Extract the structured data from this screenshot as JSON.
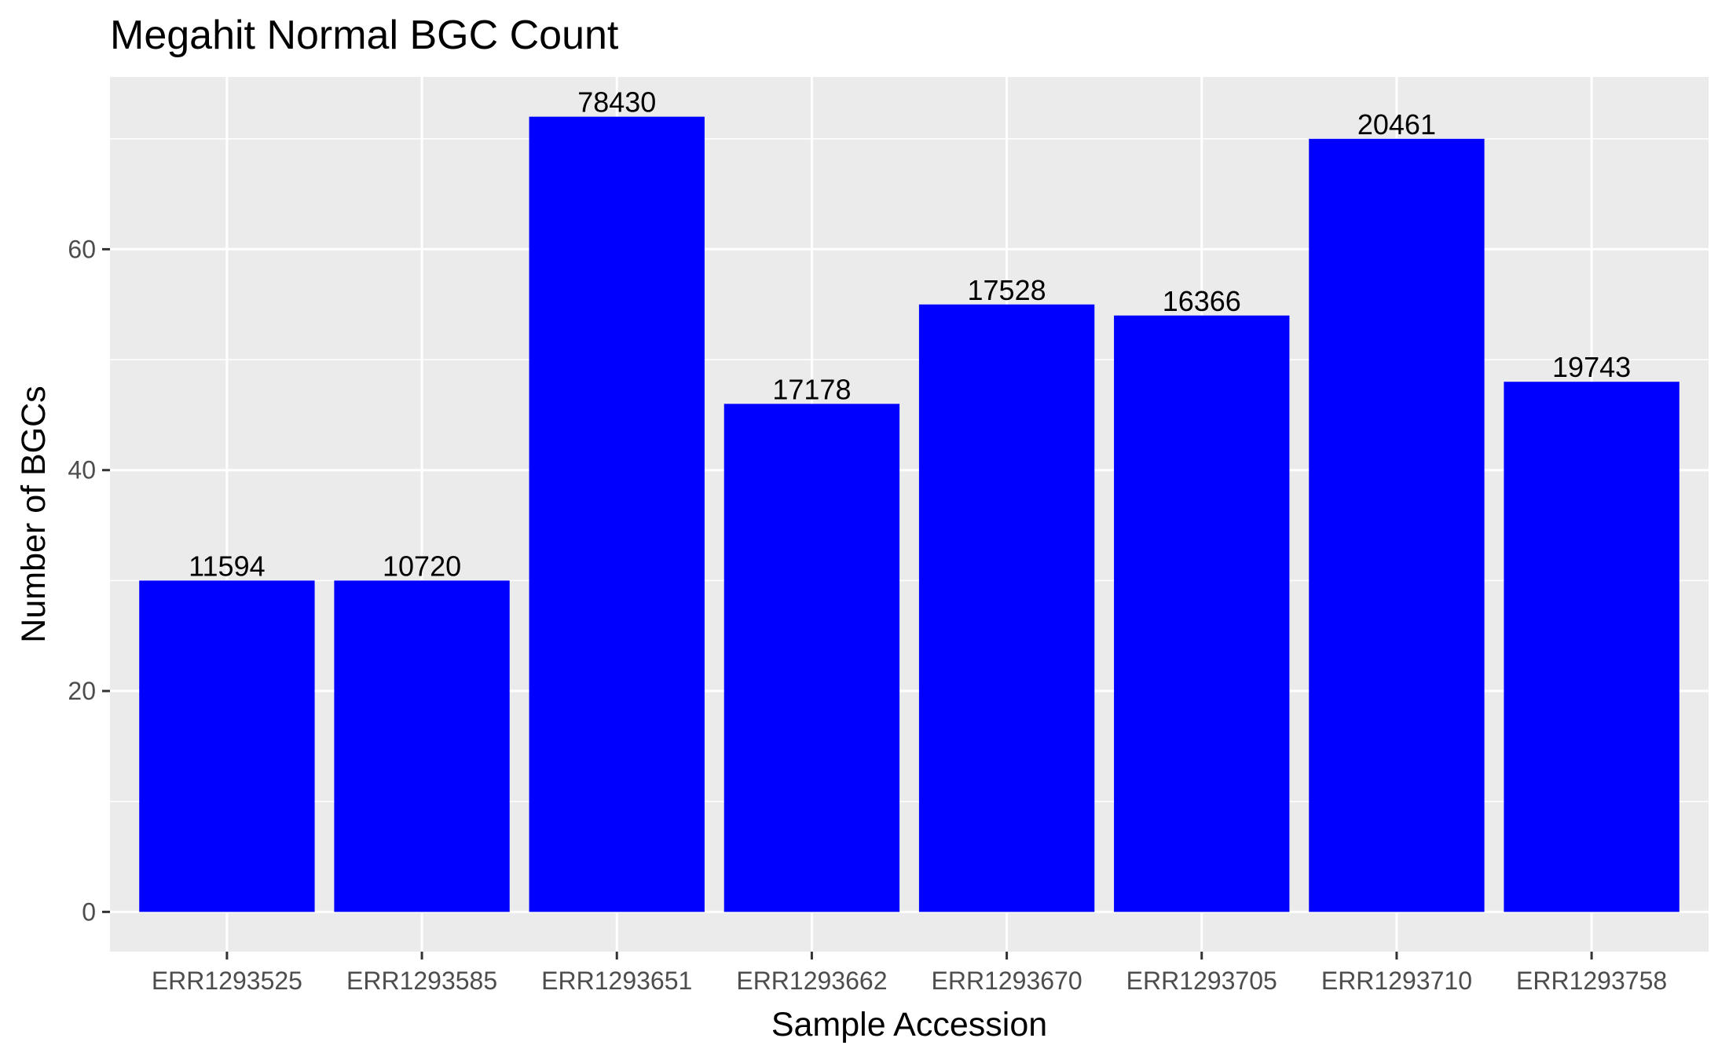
{
  "chart_data": {
    "type": "bar",
    "title": "Megahit Normal BGC Count",
    "xlabel": "Sample Accession",
    "ylabel": "Number of BGCs",
    "categories": [
      "ERR1293525",
      "ERR1293585",
      "ERR1293651",
      "ERR1293662",
      "ERR1293670",
      "ERR1293705",
      "ERR1293710",
      "ERR1293758"
    ],
    "values": [
      30,
      30,
      72,
      46,
      55,
      54,
      70,
      48
    ],
    "data_labels": [
      "11594",
      "10720",
      "78430",
      "17178",
      "17528",
      "16366",
      "20461",
      "19743"
    ],
    "ylim": [
      -3.6,
      75.6
    ],
    "yticks": [
      0,
      20,
      40,
      60
    ],
    "grid": true,
    "legend": "none",
    "bar_color": "#0000ff",
    "panel_color": "#ebebeb",
    "grid_color": "#ffffff"
  }
}
